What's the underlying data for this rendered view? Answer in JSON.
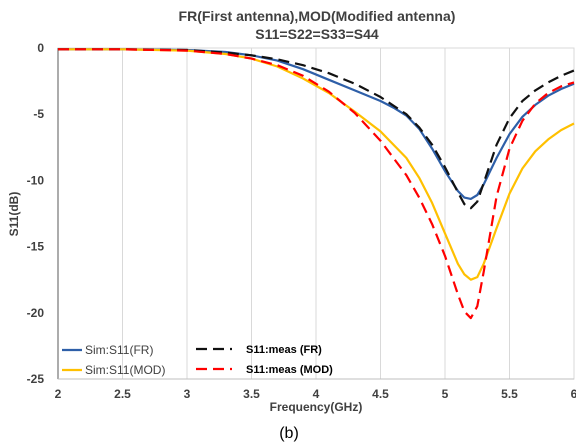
{
  "chart_data": {
    "type": "line",
    "title": "FR(First antenna),MOD(Modified antenna)",
    "subtitle": "S11=S22=S33=S44",
    "xlabel": "Frequency(GHz)",
    "ylabel": "S11(dB)",
    "caption": "(b)",
    "xlim": [
      2,
      6
    ],
    "ylim": [
      -25,
      0
    ],
    "xticks": [
      2,
      2.5,
      3,
      3.5,
      4,
      4.5,
      5,
      5.5,
      6
    ],
    "xtick_labels": [
      "2",
      "2.5",
      "3",
      "3.5",
      "4",
      "4.5",
      "5",
      "5.5",
      "6"
    ],
    "yticks": [
      0,
      -5,
      -10,
      -15,
      -20,
      -25
    ],
    "ytick_labels": [
      "0",
      "-5",
      "-10",
      "-15",
      "-20",
      "-25"
    ],
    "grid": "vertical",
    "legend": "bottom-left",
    "series": [
      {
        "name": "Sim:S11(FR)",
        "color": "#2e5fa8",
        "style": "solid",
        "x": [
          2,
          2.5,
          3,
          3.3,
          3.5,
          3.7,
          3.9,
          4.1,
          4.3,
          4.5,
          4.6,
          4.7,
          4.8,
          4.9,
          5.0,
          5.1,
          5.15,
          5.2,
          5.25,
          5.3,
          5.4,
          5.5,
          5.6,
          5.7,
          5.8,
          5.9,
          6.0
        ],
        "y": [
          -0.1,
          -0.1,
          -0.15,
          -0.3,
          -0.55,
          -0.95,
          -1.6,
          -2.4,
          -3.2,
          -4.0,
          -4.5,
          -5.1,
          -6.1,
          -7.6,
          -9.3,
          -10.8,
          -11.3,
          -11.4,
          -11.1,
          -10.3,
          -8.3,
          -6.5,
          -5.2,
          -4.3,
          -3.6,
          -3.1,
          -2.7
        ]
      },
      {
        "name": "Sim:S11(MOD)",
        "color": "#ffc000",
        "style": "solid",
        "x": [
          2,
          2.5,
          3,
          3.3,
          3.5,
          3.7,
          3.9,
          4.1,
          4.3,
          4.5,
          4.7,
          4.8,
          4.9,
          5.0,
          5.1,
          5.15,
          5.2,
          5.25,
          5.3,
          5.4,
          5.5,
          5.6,
          5.7,
          5.8,
          5.9,
          6.0
        ],
        "y": [
          -0.1,
          -0.1,
          -0.2,
          -0.45,
          -0.8,
          -1.4,
          -2.3,
          -3.4,
          -4.8,
          -6.3,
          -8.3,
          -9.8,
          -11.7,
          -14.0,
          -16.3,
          -17.1,
          -17.5,
          -17.3,
          -16.3,
          -13.6,
          -11.0,
          -9.1,
          -7.8,
          -6.9,
          -6.2,
          -5.7
        ]
      },
      {
        "name": "S11:meas (FR)",
        "color": "#111111",
        "style": "dashed",
        "x": [
          2,
          2.5,
          3,
          3.3,
          3.5,
          3.7,
          3.9,
          4.1,
          4.3,
          4.5,
          4.7,
          4.8,
          4.9,
          5.0,
          5.1,
          5.15,
          5.2,
          5.25,
          5.3,
          5.4,
          5.5,
          5.6,
          5.7,
          5.8,
          5.9,
          6.0
        ],
        "y": [
          -0.1,
          -0.1,
          -0.15,
          -0.35,
          -0.55,
          -0.85,
          -1.3,
          -1.9,
          -2.7,
          -3.7,
          -5.0,
          -6.0,
          -7.3,
          -9.0,
          -10.9,
          -11.8,
          -12.1,
          -11.6,
          -10.2,
          -7.3,
          -5.3,
          -4.0,
          -3.2,
          -2.6,
          -2.1,
          -1.7
        ]
      },
      {
        "name": "S11:meas (MOD)",
        "color": "#ff0000",
        "style": "dashed",
        "x": [
          2,
          2.5,
          3,
          3.3,
          3.5,
          3.7,
          3.9,
          4.1,
          4.3,
          4.5,
          4.7,
          4.8,
          4.9,
          5.0,
          5.1,
          5.15,
          5.2,
          5.25,
          5.3,
          5.4,
          5.5,
          5.6,
          5.7,
          5.8,
          5.9,
          6.0
        ],
        "y": [
          -0.1,
          -0.1,
          -0.2,
          -0.45,
          -0.8,
          -1.3,
          -2.1,
          -3.3,
          -4.9,
          -7.0,
          -9.6,
          -11.3,
          -13.3,
          -15.7,
          -18.6,
          -19.9,
          -20.4,
          -19.5,
          -16.9,
          -11.2,
          -7.6,
          -5.5,
          -4.2,
          -3.4,
          -2.9,
          -2.6
        ]
      }
    ]
  }
}
